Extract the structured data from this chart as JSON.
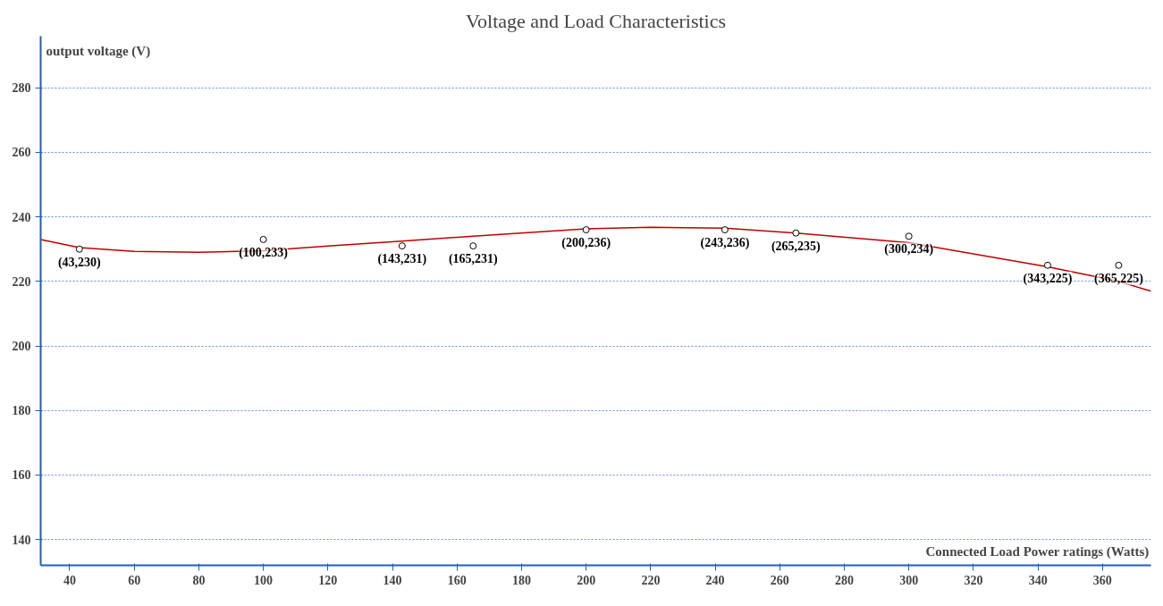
{
  "chart_data": {
    "type": "line",
    "title": "Voltage and Load Characteristics",
    "xlabel": "Connected Load Power ratings (Watts)",
    "ylabel": "output voltage (V)",
    "xlim": [
      31,
      375
    ],
    "ylim": [
      132,
      296
    ],
    "xticks": [
      40,
      60,
      80,
      100,
      120,
      140,
      160,
      180,
      200,
      220,
      240,
      260,
      280,
      300,
      320,
      340,
      360
    ],
    "yticks": [
      140,
      160,
      180,
      200,
      220,
      240,
      260,
      280
    ],
    "grid": "y",
    "series": [
      {
        "color": "#c00000",
        "line_style": "solid",
        "x": [
          31,
          43,
          60,
          80,
          100,
          120,
          143,
          165,
          200,
          220,
          243,
          265,
          300,
          343,
          365,
          375
        ],
        "values": [
          233,
          230.5,
          229.3,
          229,
          229.5,
          231,
          232.5,
          234,
          236.3,
          236.8,
          236.5,
          235,
          232,
          224.5,
          220,
          217
        ]
      },
      {
        "type": "scatter",
        "marker": "circle",
        "color": "#000000",
        "x": [
          43,
          100,
          143,
          165,
          200,
          243,
          265,
          300,
          343,
          365
        ],
        "values": [
          230,
          233,
          231,
          231,
          236,
          236,
          235,
          234,
          225,
          225
        ]
      }
    ],
    "annotations": [
      {
        "text": "(43,230)",
        "x": 43,
        "y": 230
      },
      {
        "text": "(100,233)",
        "x": 100,
        "y": 233
      },
      {
        "text": "(143,231)",
        "x": 143,
        "y": 231
      },
      {
        "text": "(165,231)",
        "x": 165,
        "y": 231
      },
      {
        "text": "(200,236)",
        "x": 200,
        "y": 236
      },
      {
        "text": "(243,236)",
        "x": 243,
        "y": 236
      },
      {
        "text": "(265,235)",
        "x": 265,
        "y": 235
      },
      {
        "text": "(300,234)",
        "x": 300,
        "y": 234
      },
      {
        "text": "(343,225)",
        "x": 343,
        "y": 225
      },
      {
        "text": "(365,225)",
        "x": 365,
        "y": 225
      }
    ]
  }
}
